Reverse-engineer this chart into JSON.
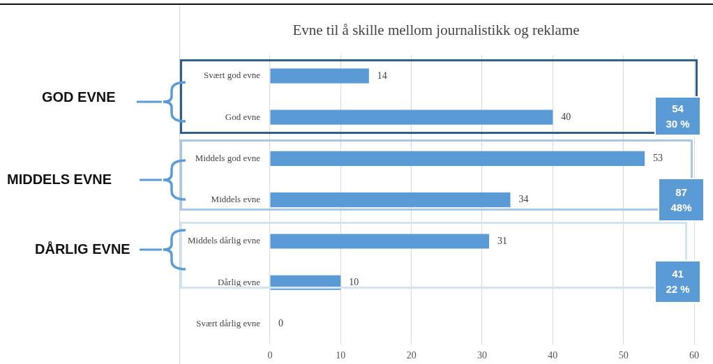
{
  "chart_data": {
    "type": "bar",
    "orientation": "horizontal",
    "title": "Evne til å skille mellom journalistikk og reklame",
    "categories": [
      "Svært god evne",
      "God evne",
      "Middels god evne",
      "Middels evne",
      "Middels dårlig evne",
      "Dårlig evne",
      "Svært dårlig evne"
    ],
    "values": [
      14,
      40,
      53,
      34,
      31,
      10,
      0
    ],
    "color": "#5b9bd5",
    "xlim": [
      0,
      60
    ],
    "xticks": [
      0,
      10,
      20,
      30,
      40,
      50,
      60
    ],
    "grid": "x",
    "data_labels": true,
    "legend": false,
    "annotations": [
      "GOD EVNE",
      "MIDDELS EVNE",
      "DÅRLIG EVNE",
      "54",
      "30 %",
      "87",
      "48%",
      "41",
      "22 %"
    ]
  }
}
